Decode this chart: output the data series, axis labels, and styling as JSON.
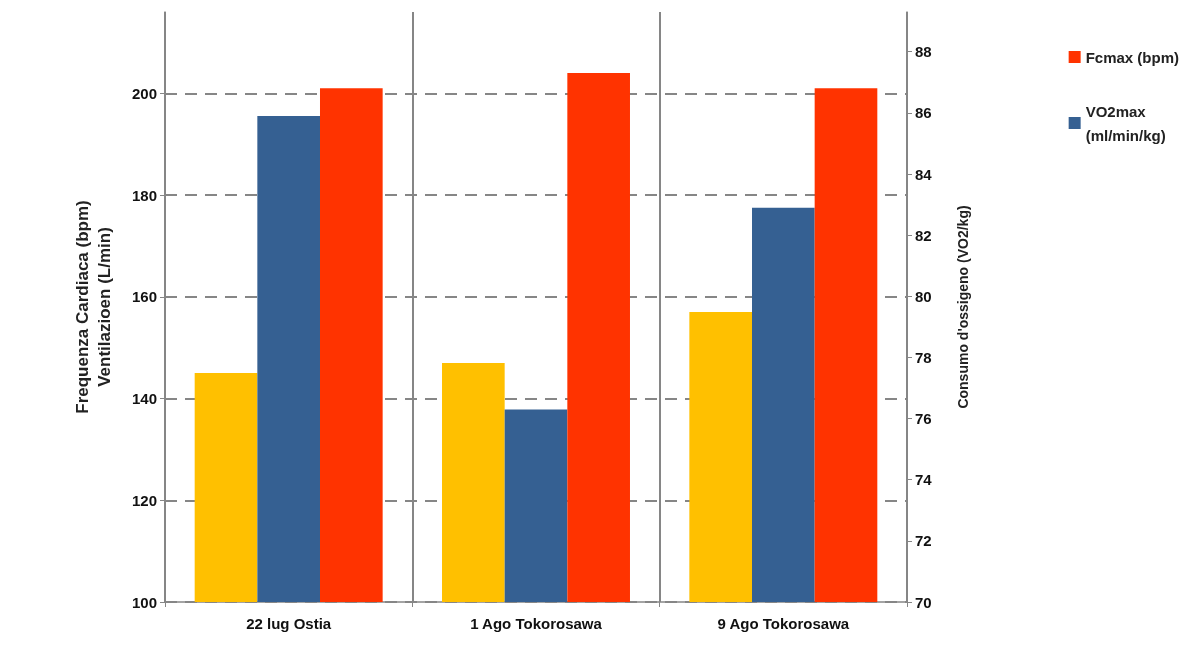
{
  "chart_data": {
    "type": "bar",
    "categories": [
      "22 lug Ostia",
      "1 Ago Tokorosawa",
      "9 Ago Tokorosawa"
    ],
    "ylabel": "Frequenza Cardiaca (bpm)\nVentilazioen (L/min)",
    "y2label": "Consumo d'ossigeno (VO2/kg)",
    "ylim": [
      100,
      216
    ],
    "yticks": [
      100,
      120,
      140,
      160,
      180,
      200
    ],
    "y2lim": [
      70,
      89.3
    ],
    "y2ticks": [
      70,
      72,
      74,
      76,
      78,
      80,
      82,
      84,
      86,
      88
    ],
    "series": [
      {
        "color": "#ffc000",
        "values": [
          145,
          147,
          157
        ]
      },
      {
        "name": "VO2max (ml/min/kg)",
        "color": "#356092",
        "values": [
          85.9,
          76.3,
          82.9
        ],
        "axis": "y2"
      },
      {
        "name": "Fcmax (bpm)",
        "color": "#ff3300",
        "values": [
          201,
          204,
          201
        ]
      }
    ],
    "grid": true,
    "legend": "right"
  }
}
